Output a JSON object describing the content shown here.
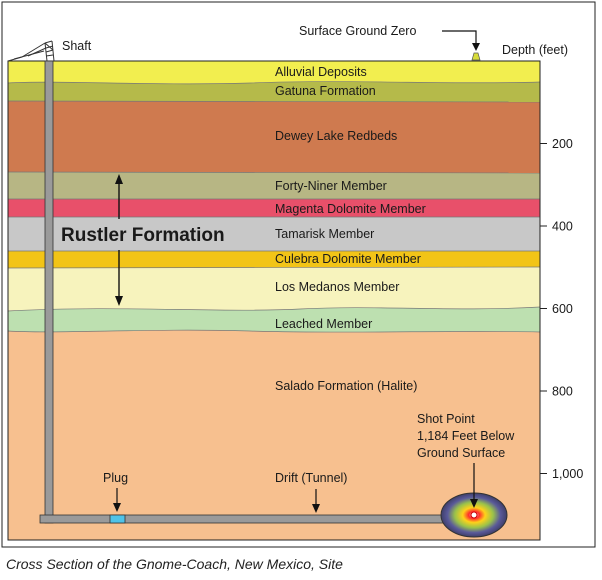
{
  "diagram": {
    "depth_header": "Depth (feet)",
    "surface_ground_zero": "Surface Ground Zero",
    "shaft": "Shaft",
    "rustler_formation": "Rustler Formation",
    "layers": [
      {
        "name": "Alluvial Deposits",
        "color": "#f2ee4f"
      },
      {
        "name": "Gatuna Formation",
        "color": "#b5ba4a"
      },
      {
        "name": "Dewey Lake Redbeds",
        "color": "#cf7a4f"
      },
      {
        "name": "Forty-Niner Member",
        "color": "#b7b684"
      },
      {
        "name": "Magenta Dolomite Member",
        "color": "#e8506a"
      },
      {
        "name": "Tamarisk Member",
        "color": "#c8c8c8"
      },
      {
        "name": "Culebra Dolomite Member",
        "color": "#f2c417"
      },
      {
        "name": "Los Medanos Member",
        "color": "#f7f3bd"
      },
      {
        "name": "Leached Member",
        "color": "#bde0b0"
      },
      {
        "name": "Salado Formation (Halite)",
        "color": "#f7c08f"
      }
    ],
    "depth_ticks": [
      {
        "value": 200,
        "label": "200"
      },
      {
        "value": 400,
        "label": "400"
      },
      {
        "value": 600,
        "label": "600"
      },
      {
        "value": 800,
        "label": "800"
      },
      {
        "value": 1000,
        "label": "1,000"
      }
    ],
    "plug": "Plug",
    "drift": "Drift (Tunnel)",
    "shot_point": [
      "Shot Point",
      "1,184 Feet Below",
      "Ground Surface"
    ],
    "colors": {
      "shaft": "#9a9a9a",
      "plug": "#4fc3e8",
      "outline": "#1a1a1a"
    }
  },
  "caption": "Cross Section of the Gnome-Coach, New Mexico, Site"
}
